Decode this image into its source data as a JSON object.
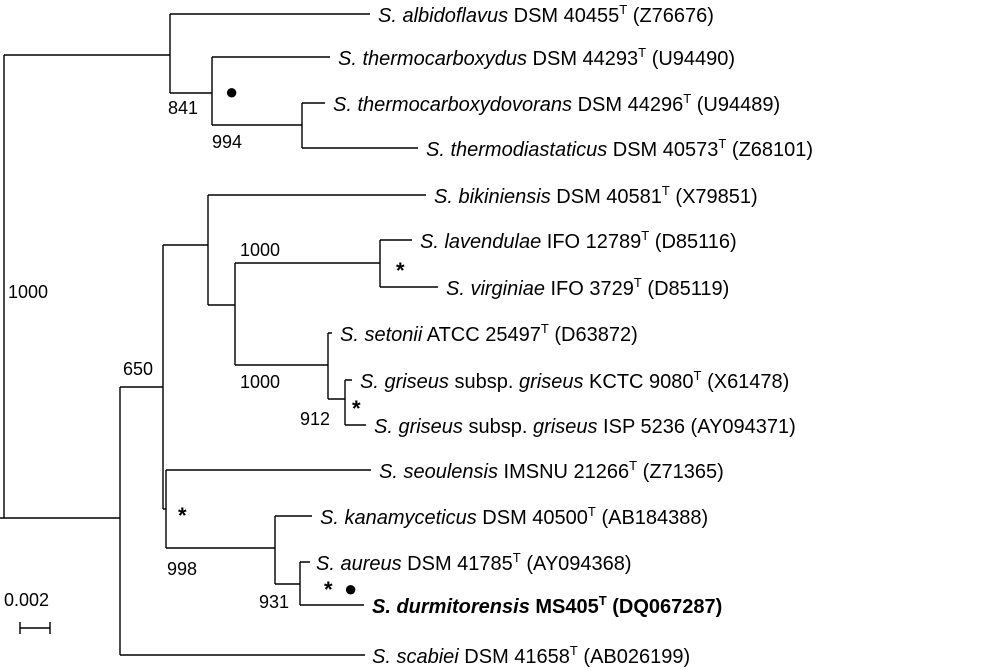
{
  "tree": {
    "leaves": [
      {
        "id": "albidoflavus",
        "species": "S. albidoflavus",
        "strain": "DSM 40455",
        "type_mark": "T",
        "accession": "(Z76676)",
        "bold": false
      },
      {
        "id": "thermocarboxydus",
        "species": "S. thermocarboxydus",
        "strain": "DSM 44293",
        "type_mark": "T",
        "accession": "(U94490)",
        "bold": false
      },
      {
        "id": "thermocarboxydovorans",
        "species": "S. thermocarboxydovorans",
        "strain": "DSM 44296",
        "type_mark": "T",
        "accession": "(U94489)",
        "bold": false
      },
      {
        "id": "thermodiastaticus",
        "species": "S. thermodiastaticus",
        "strain": "DSM 40573",
        "type_mark": "T",
        "accession": "(Z68101)",
        "bold": false
      },
      {
        "id": "bikiniensis",
        "species": "S. bikiniensis",
        "strain": "DSM 40581",
        "type_mark": "T",
        "accession": "(X79851)",
        "bold": false
      },
      {
        "id": "lavendulae",
        "species": "S. lavendulae",
        "strain": "IFO 12789",
        "type_mark": "T",
        "accession": "(D85116)",
        "bold": false
      },
      {
        "id": "virginiae",
        "species": "S. virginiae",
        "strain": "IFO 3729",
        "type_mark": "T",
        "accession": "(D85119)",
        "bold": false
      },
      {
        "id": "setonii",
        "species": "S. setonii",
        "strain": "ATCC 25497",
        "type_mark": "T",
        "accession": "(D63872)",
        "bold": false
      },
      {
        "id": "griseus_kctc",
        "species": "S. griseus",
        "subsp_word": "subsp.",
        "subsp_name": "griseus",
        "strain": "KCTC 9080",
        "type_mark": "T",
        "accession": "(X61478)",
        "bold": false
      },
      {
        "id": "griseus_isp",
        "species": "S. griseus",
        "subsp_word": "subsp.",
        "subsp_name": "griseus",
        "strain": "ISP 5236",
        "type_mark": "",
        "accession": "(AY094371)",
        "bold": false
      },
      {
        "id": "seoulensis",
        "species": "S. seoulensis",
        "strain": "IMSNU 21266",
        "type_mark": "T",
        "accession": "(Z71365)",
        "bold": false
      },
      {
        "id": "kanamyceticus",
        "species": "S. kanamyceticus",
        "strain": "DSM 40500",
        "type_mark": "T",
        "accession": "(AB184388)",
        "bold": false
      },
      {
        "id": "aureus",
        "species": "S. aureus",
        "strain": "DSM 41785",
        "type_mark": "T",
        "accession": "(AY094368)",
        "bold": false
      },
      {
        "id": "durmitorensis",
        "species": "S. durmitorensis",
        "strain": "MS405",
        "type_mark": "T",
        "accession": "(DQ067287)",
        "bold": true
      },
      {
        "id": "scabiei",
        "species": "S. scabiei",
        "strain": "DSM 41658",
        "type_mark": "T",
        "accession": "(AB026199)",
        "bold": false
      }
    ],
    "bootstrap_values": {
      "root_upper": "1000",
      "thermo_clade": "841",
      "thermo_inner": "994",
      "lavendulae_clade": "1000",
      "griseus_clade": "1000",
      "griseus_inner": "912",
      "main_lower": "650",
      "seoulensis_clade": "998",
      "aureus_clade": "931"
    },
    "marks": {
      "dot_symbol": "●",
      "star_symbol": "*"
    },
    "scale_bar": {
      "label": "0.002"
    }
  }
}
